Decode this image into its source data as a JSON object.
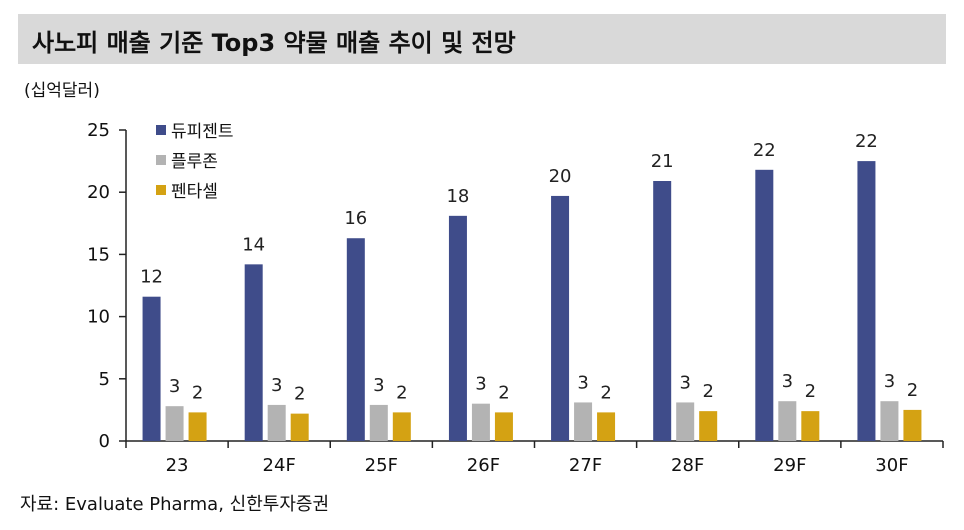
{
  "title": "사노피 매출 기준 Top3 약물 매출 추이 및 전망",
  "unit_label": "(십억달러)",
  "source": "자료: Evaluate Pharma, 신한투자증권",
  "colors": {
    "dupixent": "#3f4c8a",
    "praluent": "#b3b3b3",
    "fentanyl": "#d4a213",
    "title_bg": "#d9d9d9"
  },
  "chart_data": {
    "type": "bar",
    "categories": [
      "23",
      "24F",
      "25F",
      "26F",
      "27F",
      "28F",
      "29F",
      "30F"
    ],
    "series": [
      {
        "name": "듀피젠트",
        "values": [
          11.6,
          14.2,
          16.3,
          18.1,
          19.7,
          20.9,
          21.8,
          22.5
        ],
        "labels": [
          "12",
          "14",
          "16",
          "18",
          "20",
          "21",
          "22",
          "22"
        ]
      },
      {
        "name": "플루존",
        "values": [
          2.8,
          2.9,
          2.9,
          3.0,
          3.1,
          3.1,
          3.2,
          3.2
        ],
        "labels": [
          "3",
          "3",
          "3",
          "3",
          "3",
          "3",
          "3",
          "3"
        ]
      },
      {
        "name": "펜타셀",
        "values": [
          2.3,
          2.2,
          2.3,
          2.3,
          2.3,
          2.4,
          2.4,
          2.5
        ],
        "labels": [
          "2",
          "2",
          "2",
          "2",
          "2",
          "2",
          "2",
          "2"
        ]
      }
    ],
    "ylim": [
      0,
      25
    ],
    "yticks": [
      0,
      5,
      10,
      15,
      20,
      25
    ],
    "legend_position": "top-left",
    "grid": false
  }
}
